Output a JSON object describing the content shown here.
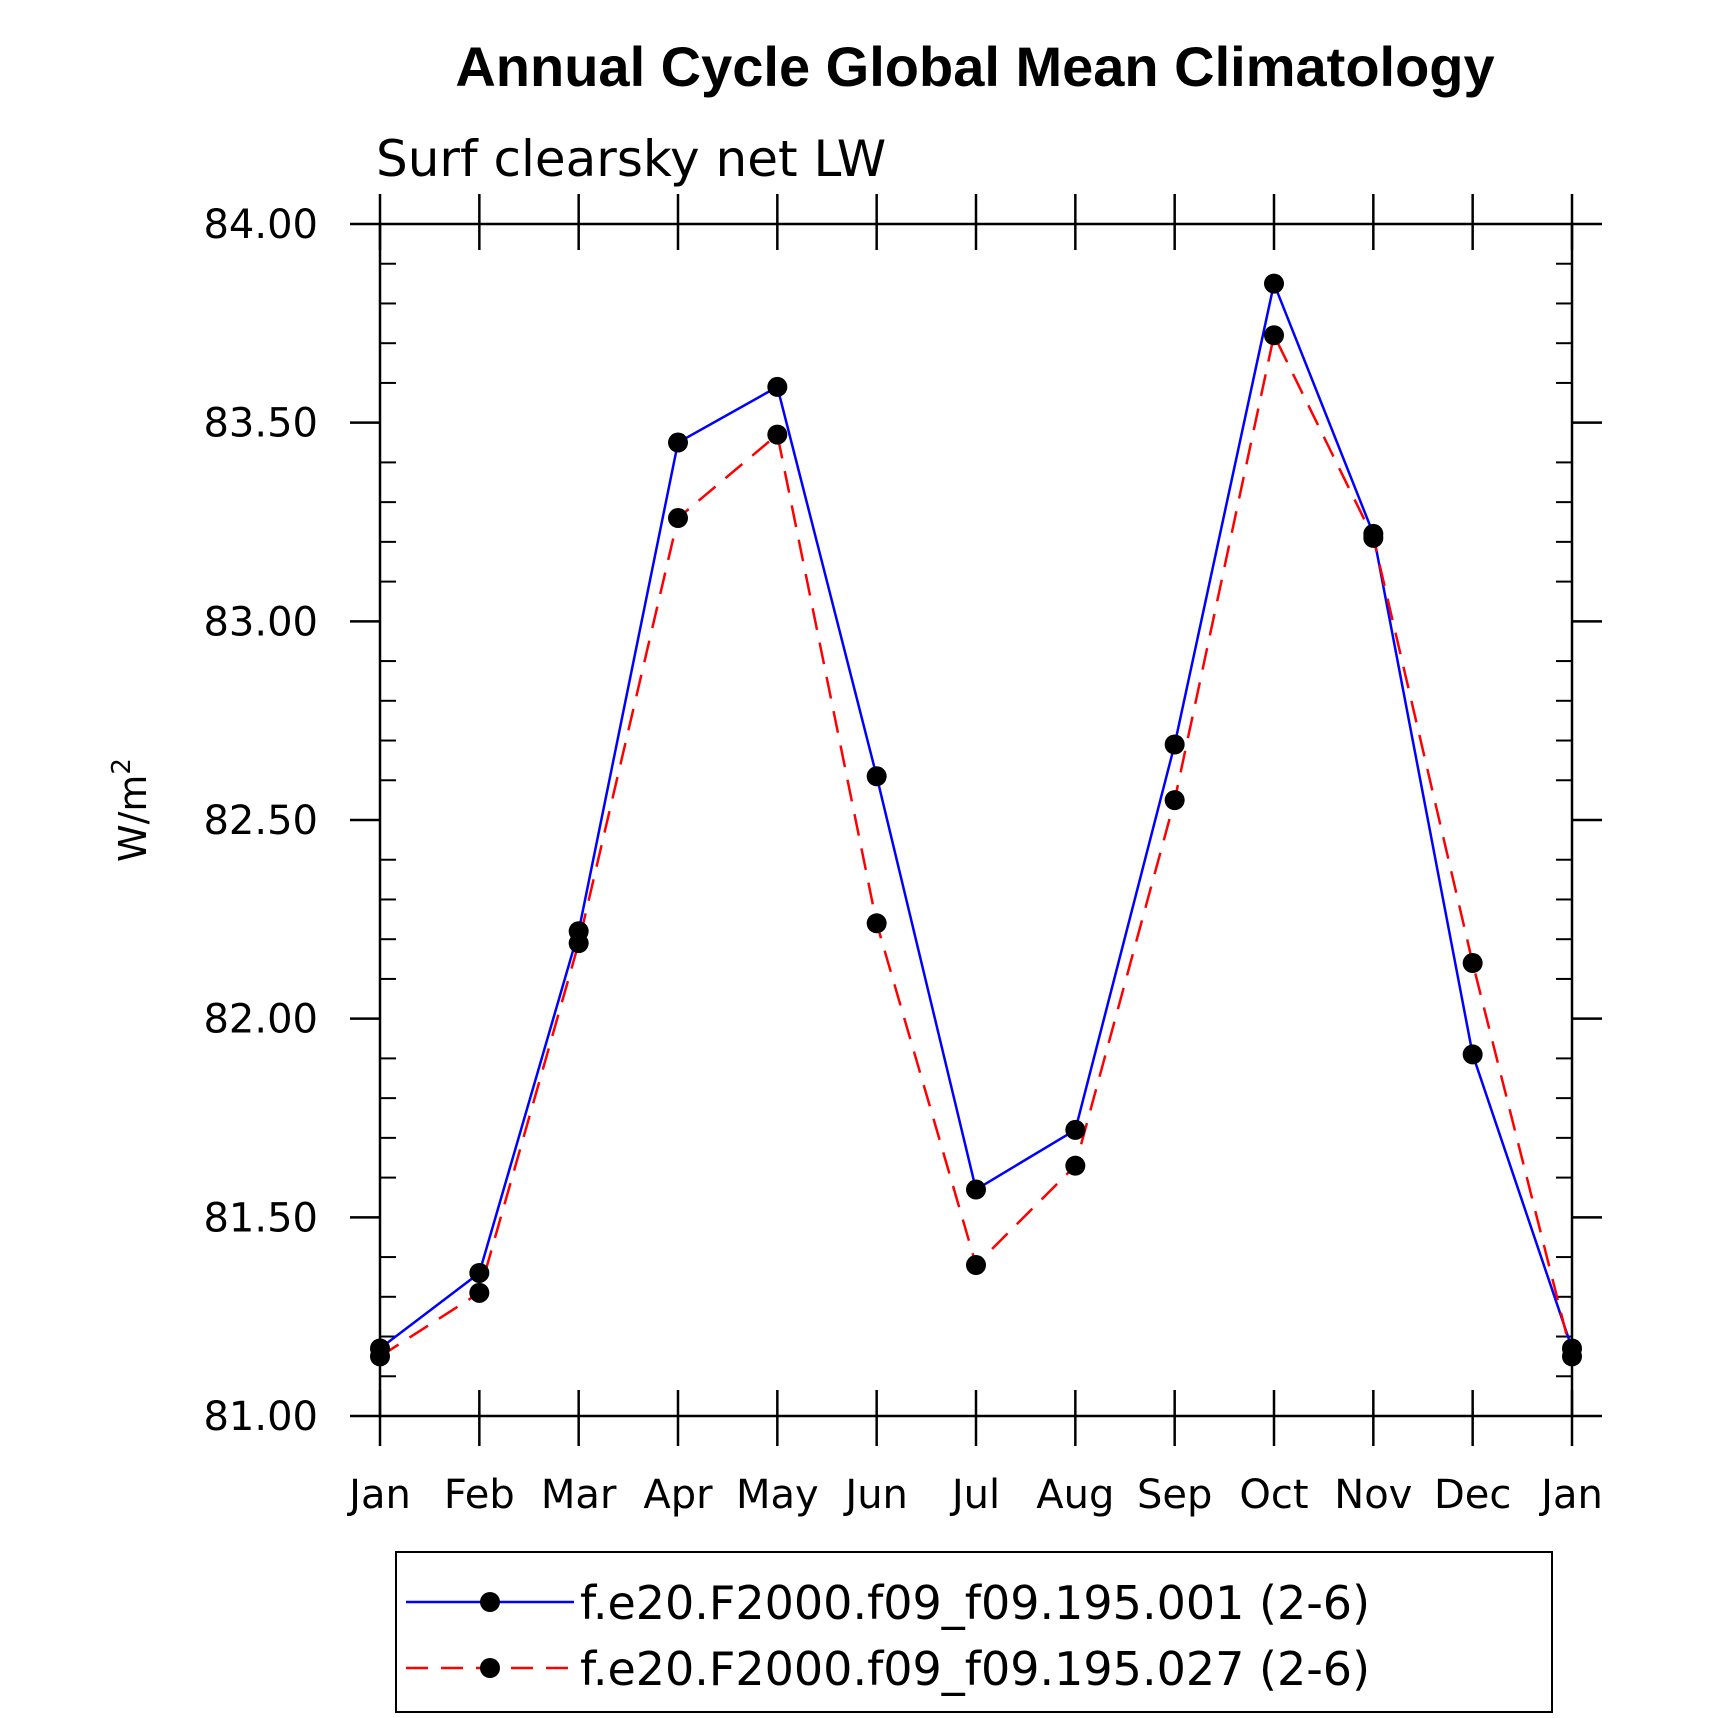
{
  "chart_data": {
    "type": "line",
    "title": "Annual Cycle Global Mean Climatology",
    "subtitle": "Surf clearsky net LW",
    "ylabel_base": "W/m",
    "ylabel_sup": "2",
    "xlabel": "",
    "categories": [
      "Jan",
      "Feb",
      "Mar",
      "Apr",
      "May",
      "Jun",
      "Jul",
      "Aug",
      "Sep",
      "Oct",
      "Nov",
      "Dec",
      "Jan"
    ],
    "ylim": [
      81.0,
      84.0
    ],
    "yticks": [
      "81.00",
      "81.50",
      "82.00",
      "82.50",
      "83.00",
      "83.50",
      "84.00"
    ],
    "ytick_values": [
      81.0,
      81.5,
      82.0,
      82.5,
      83.0,
      83.5,
      84.0
    ],
    "grid": false,
    "legend_position": "bottom",
    "series": [
      {
        "name": "f.e20.F2000.f09_f09.195.001 (2-6)",
        "color": "#0000ff",
        "dash": "solid",
        "marker": "filled-circle",
        "values": [
          81.17,
          81.36,
          82.22,
          83.45,
          83.59,
          82.61,
          81.57,
          81.72,
          82.69,
          83.85,
          83.22,
          81.91,
          81.17
        ]
      },
      {
        "name": "f.e20.F2000.f09_f09.195.027 (2-6)",
        "color": "#ff0000",
        "dash": "dashed",
        "marker": "filled-circle",
        "values": [
          81.15,
          81.31,
          82.19,
          83.26,
          83.47,
          82.24,
          81.38,
          81.63,
          82.55,
          83.72,
          83.21,
          82.14,
          81.15
        ]
      }
    ]
  }
}
